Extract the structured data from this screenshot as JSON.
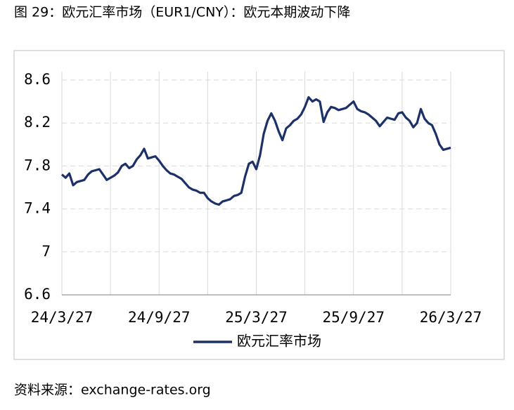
{
  "chart_data": {
    "type": "line",
    "title": "图 29：欧元汇率市场（EUR1/CNY）：欧元本期波动下降",
    "categories": [
      "24/3/27",
      null,
      null,
      null,
      null,
      null,
      null,
      null,
      null,
      null,
      null,
      null,
      null,
      null,
      null,
      null,
      null,
      null,
      null,
      null,
      null,
      null,
      null,
      null,
      null,
      null,
      "24/9/27",
      null,
      null,
      null,
      null,
      null,
      null,
      null,
      null,
      null,
      null,
      null,
      null,
      null,
      null,
      null,
      null,
      null,
      null,
      null,
      null,
      null,
      null,
      null,
      null,
      null,
      "25/3/27",
      null,
      null,
      null,
      null,
      null,
      null,
      null,
      null,
      null,
      null,
      null,
      null,
      null,
      null,
      null,
      null,
      null,
      null,
      null,
      null,
      null,
      null,
      null,
      null,
      null,
      "25/9/27",
      null,
      null,
      null,
      null,
      null,
      null,
      null,
      null,
      null,
      null,
      null,
      null,
      null,
      null,
      null,
      null,
      null,
      null,
      null,
      null,
      null,
      null,
      null,
      null,
      null,
      "26/3/27"
    ],
    "series": [
      {
        "name": "欧元汇率市场",
        "color": "#1b3168",
        "values": [
          7.72,
          7.69,
          7.73,
          7.62,
          7.65,
          7.66,
          7.67,
          7.72,
          7.75,
          7.76,
          7.77,
          7.72,
          7.67,
          7.69,
          7.71,
          7.74,
          7.8,
          7.82,
          7.78,
          7.8,
          7.86,
          7.9,
          7.96,
          7.87,
          7.88,
          7.89,
          7.85,
          7.8,
          7.76,
          7.73,
          7.72,
          7.7,
          7.68,
          7.64,
          7.6,
          7.58,
          7.57,
          7.55,
          7.55,
          7.5,
          7.47,
          7.45,
          7.44,
          7.47,
          7.48,
          7.49,
          7.52,
          7.53,
          7.55,
          7.7,
          7.82,
          7.84,
          7.77,
          7.9,
          8.1,
          8.22,
          8.29,
          8.22,
          8.12,
          8.04,
          8.15,
          8.18,
          8.22,
          8.24,
          8.28,
          8.35,
          8.44,
          8.4,
          8.42,
          8.4,
          8.21,
          8.3,
          8.35,
          8.34,
          8.32,
          8.33,
          8.34,
          8.37,
          8.4,
          8.33,
          8.31,
          8.3,
          8.28,
          8.25,
          8.22,
          8.17,
          8.21,
          8.25,
          8.24,
          8.23,
          8.29,
          8.3,
          8.25,
          8.22,
          8.16,
          8.2,
          8.33,
          8.24,
          8.2,
          8.18,
          8.1,
          8.0,
          7.95,
          7.96,
          7.97
        ]
      }
    ],
    "ylim": [
      6.6,
      8.6
    ],
    "yticks": [
      8.6,
      8.2,
      7.8,
      7.4,
      7,
      6.6
    ],
    "grid": true,
    "legend": "bottom"
  },
  "source": "资料来源：exchange-rates.org"
}
